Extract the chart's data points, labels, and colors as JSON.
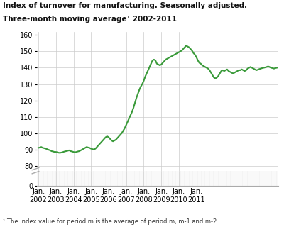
{
  "title_line1": "Index of turnover for manufacturing. Seasonally adjusted.",
  "title_line2": "Three-month moving average¹ 2002-2011",
  "footnote": "¹ The index value for period m is the average of period m, m-1 and m-2.",
  "line_color": "#3a9a3a",
  "line_width": 1.5,
  "background_color": "#ffffff",
  "grid_color": "#cccccc",
  "yticks_main": [
    80,
    90,
    100,
    110,
    120,
    130,
    140,
    150,
    160
  ],
  "yticks_bottom": [
    0
  ],
  "xtick_labels": [
    "Jan.\n2002",
    "Jan.\n2003",
    "Jan.\n2004",
    "Jan.\n2005",
    "Jan.\n2006",
    "Jan.\n2007",
    "Jan.\n2008",
    "Jan.\n2009",
    "Jan.\n2010",
    "Jan.\n2011"
  ],
  "values": [
    91.0,
    91.2,
    91.5,
    91.0,
    90.8,
    90.5,
    90.2,
    89.8,
    89.5,
    89.0,
    88.8,
    88.5,
    88.5,
    88.3,
    88.0,
    88.0,
    88.2,
    88.5,
    88.8,
    89.0,
    89.2,
    89.5,
    89.0,
    88.8,
    88.5,
    88.3,
    88.5,
    88.8,
    89.0,
    89.5,
    90.0,
    90.5,
    91.0,
    91.5,
    91.2,
    91.0,
    90.5,
    90.2,
    90.0,
    90.5,
    91.5,
    92.5,
    93.5,
    94.5,
    95.5,
    96.5,
    97.5,
    98.0,
    97.5,
    96.5,
    95.5,
    95.0,
    95.5,
    96.0,
    97.0,
    98.0,
    99.0,
    100.0,
    101.5,
    103.0,
    105.0,
    107.0,
    109.0,
    111.0,
    113.0,
    115.5,
    118.5,
    121.5,
    124.0,
    126.5,
    128.5,
    130.0,
    132.0,
    134.5,
    136.5,
    138.5,
    140.5,
    142.5,
    144.5,
    145.0,
    144.5,
    142.5,
    142.0,
    141.5,
    142.0,
    143.0,
    144.0,
    145.0,
    145.5,
    146.0,
    146.5,
    147.0,
    147.5,
    148.0,
    148.5,
    149.0,
    149.5,
    150.0,
    150.5,
    151.5,
    152.5,
    153.5,
    153.0,
    152.5,
    151.5,
    150.5,
    149.0,
    148.0,
    146.5,
    144.5,
    143.0,
    142.5,
    141.5,
    141.0,
    140.5,
    140.0,
    139.5,
    138.5,
    137.0,
    135.5,
    134.0,
    133.5,
    134.0,
    135.0,
    136.5,
    138.0,
    138.5,
    138.0,
    138.5,
    139.0,
    138.0,
    137.5,
    137.0,
    136.5,
    137.0,
    137.5,
    138.0,
    138.5,
    138.5,
    139.0,
    138.5,
    138.0,
    138.5,
    139.5,
    140.0,
    140.5,
    140.0,
    139.5,
    139.0,
    138.5,
    138.8,
    139.2,
    139.5,
    139.8,
    140.0,
    140.2,
    140.5,
    140.8,
    140.5,
    140.0,
    139.8,
    139.5,
    139.8,
    140.0
  ]
}
